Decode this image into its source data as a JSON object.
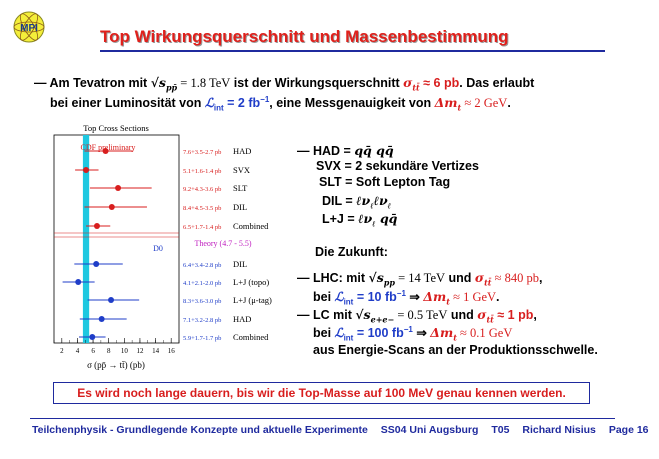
{
  "header": {
    "logo_text": "MPI",
    "title": "Top Wirkungsquerschnitt und Massenbestimmung"
  },
  "intro": {
    "line1_a": "— Am Tevatron mit ",
    "line1_sqrt": "√s",
    "line1_sqrt_sub": "pp̄",
    "line1_eq": " = 1.8 TeV",
    "line1_b": " ist der Wirkungsquerschnitt ",
    "line1_sigma": "σ",
    "line1_sigma_sub": "tt̄",
    "line1_value": " ≈ 6 pb",
    "line1_c": ". Das erlaubt",
    "line2_a": "bei einer Luminosität von ",
    "line2_L": "ℒ",
    "line2_L_sub": "int",
    "line2_lumi": " = 2 fb",
    "line2_lumi_sup": "−1",
    "line2_b": ", eine Messgenauigkeit von ",
    "line2_dm": "Δm",
    "line2_dm_sub": "t",
    "line2_dm_value": " ≈ 2 GeV",
    "line2_c": "."
  },
  "channels": {
    "had_label": "— HAD =",
    "had_formula": "qq̄ qq̄",
    "svx_line": "SVX = 2 sekundäre Vertizes",
    "slt_line": "SLT = Soft  Lepton  Tag",
    "dil_label": "DIL =",
    "dil_formula": "ℓν",
    "dil_formula_sub": "ℓ",
    "dil_formula2": "ℓν",
    "dil_formula2_sub": "ℓ",
    "lj_label": "L+J =",
    "lj_formula": "ℓν",
    "lj_formula_sub": "ℓ",
    "lj_formula2": " qq̄"
  },
  "future": {
    "heading": "Die Zukunft:",
    "lhc_a": "— LHC: mit ",
    "lhc_sqrt": "√s",
    "lhc_sqrt_sub": "pp",
    "lhc_eq": " = 14 TeV",
    "lhc_b": " und ",
    "lhc_sigma": "σ",
    "lhc_sigma_sub": "tt̄",
    "lhc_value": " ≈ 840 pb",
    "lhc_c": ",",
    "lhc2_a": "bei ",
    "lhc2_L": "ℒ",
    "lhc2_L_sub": "int",
    "lhc2_lumi": " = 10 fb",
    "lhc2_lumi_sup": "−1",
    "lhc2_arrow": " ⇒ ",
    "lhc2_dm": "Δm",
    "lhc2_dm_sub": "t",
    "lhc2_dm_value": " ≈ 1 GeV",
    "lhc2_c": ".",
    "lc_a": "— LC mit ",
    "lc_sqrt": "√s",
    "lc_sqrt_sub": "e+e−",
    "lc_eq": " = 0.5 TeV",
    "lc_b": " und ",
    "lc_sigma": "σ",
    "lc_sigma_sub": "tt̄",
    "lc_value": " ≈ 1 pb",
    "lc_c": ",",
    "lc2_a": "bei ",
    "lc2_L": "ℒ",
    "lc2_L_sub": "int",
    "lc2_lumi": " = 100 fb",
    "lc2_lumi_sup": "−1",
    "lc2_arrow": " ⇒ ",
    "lc2_dm": "Δm",
    "lc2_dm_sub": "t",
    "lc2_dm_value": " ≈ 0.1 GeV",
    "lc3": "aus Energie-Scans an der Produktionsschwelle."
  },
  "bottom_note": "Es wird noch lange dauern, bis wir die Top-Masse auf 100 MeV genau kennen werden.",
  "footer": {
    "course": "Teilchenphysik - Grundlegende Konzepte und aktuelle Experimente",
    "term": "SS04 Uni Augsburg",
    "code": "T05",
    "author": "Richard Nisius",
    "page": "Page 16"
  },
  "colors": {
    "title_red": "#e0201b",
    "accent_blue": "#1f2a9e",
    "cdf_red": "#d81e1e",
    "d0_blue": "#1f3dc8",
    "theory_band": "#1ec8e0",
    "theory_text": "#c020c0"
  },
  "chart_data": {
    "type": "scatter",
    "title": "Top Cross Sections",
    "xlabel": "σ (pp̄ → tt̄) (pb)",
    "xlim": [
      1,
      17
    ],
    "xticks": [
      2,
      4,
      6,
      8,
      10,
      12,
      14,
      16
    ],
    "theory_label": "Theory  (4.7 - 5.5)",
    "theory_range": [
      4.7,
      5.5
    ],
    "groups": [
      {
        "name": "CDF preliminary",
        "color": "#d81e1e",
        "points": [
          {
            "channel": "HAD",
            "value": 7.6,
            "err_plus": 3.5,
            "err_minus": 2.7,
            "label": "7.6+3.5-2.7 pb"
          },
          {
            "channel": "SVX",
            "value": 5.1,
            "err_plus": 1.6,
            "err_minus": 1.4,
            "label": "5.1+1.6-1.4 pb"
          },
          {
            "channel": "SLT",
            "value": 9.2,
            "err_plus": 4.3,
            "err_minus": 3.6,
            "label": "9.2+4.3-3.6 pb"
          },
          {
            "channel": "DIL",
            "value": 8.4,
            "err_plus": 4.5,
            "err_minus": 3.5,
            "label": "8.4+4.5-3.5 pb"
          },
          {
            "channel": "Combined",
            "value": 6.5,
            "err_plus": 1.7,
            "err_minus": 1.4,
            "label": "6.5+1.7-1.4 pb"
          }
        ]
      },
      {
        "name": "D0",
        "color": "#1f3dc8",
        "points": [
          {
            "channel": "DIL",
            "value": 6.4,
            "err_plus": 3.4,
            "err_minus": 2.8,
            "label": "6.4+3.4-2.8 pb"
          },
          {
            "channel": "L+J (topo)",
            "value": 4.1,
            "err_plus": 2.1,
            "err_minus": 2.0,
            "label": "4.1+2.1-2.0 pb"
          },
          {
            "channel": "L+J (μ-tag)",
            "value": 8.3,
            "err_plus": 3.6,
            "err_minus": 3.0,
            "label": "8.3+3.6-3.0 pb"
          },
          {
            "channel": "HAD",
            "value": 7.1,
            "err_plus": 3.2,
            "err_minus": 2.8,
            "label": "7.1+3.2-2.8 pb"
          },
          {
            "channel": "Combined",
            "value": 5.9,
            "err_plus": 1.7,
            "err_minus": 1.7,
            "label": "5.9+1.7-1.7 pb"
          }
        ]
      }
    ]
  }
}
